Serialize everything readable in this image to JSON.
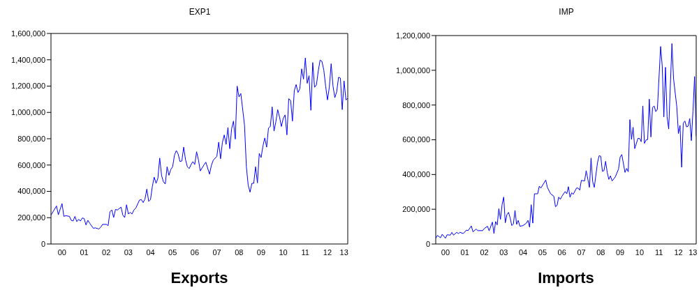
{
  "chart_data": [
    {
      "type": "line",
      "title": "EXP1",
      "xlabel": "Exports",
      "color": "#0000ff",
      "x": [
        "2000-01",
        "2000-04",
        "2000-05",
        "2000-07",
        "2000-08",
        "2000-09",
        "2000-11",
        "2000-12",
        "2001-01",
        "2001-02",
        "2001-03",
        "2001-04",
        "2001-05",
        "2001-06",
        "2001-07",
        "2001-08",
        "2001-09",
        "2001-10",
        "2001-12",
        "2002-01",
        "2002-03",
        "2002-04",
        "2002-05",
        "2002-07",
        "2002-08",
        "2002-09",
        "2002-10",
        "2002-11",
        "2002-12",
        "2003-01",
        "2003-03",
        "2003-04",
        "2003-05",
        "2003-06",
        "2003-07",
        "2003-08",
        "2003-09",
        "2003-10",
        "2003-11",
        "2004-01",
        "2004-02",
        "2004-03",
        "2004-04",
        "2004-05",
        "2004-06",
        "2004-07",
        "2004-08",
        "2004-09",
        "2004-10",
        "2004-11",
        "2004-12",
        "2005-01",
        "2005-02",
        "2005-03",
        "2005-04",
        "2005-05",
        "2005-06",
        "2005-07",
        "2005-08",
        "2005-09",
        "2005-10",
        "2005-11",
        "2005-12",
        "2006-01",
        "2006-02",
        "2006-03",
        "2006-04",
        "2006-05",
        "2006-06",
        "2006-07",
        "2006-08",
        "2006-09",
        "2006-10",
        "2006-12",
        "2007-01",
        "2007-03",
        "2007-04",
        "2007-05",
        "2007-07",
        "2007-08",
        "2007-09",
        "2007-10",
        "2007-11",
        "2007-12",
        "2008-01",
        "2008-02",
        "2008-03",
        "2008-04",
        "2008-05",
        "2008-06",
        "2008-07",
        "2008-08",
        "2008-10",
        "2008-11",
        "2008-12",
        "2009-01",
        "2009-02",
        "2009-03",
        "2009-04",
        "2009-05",
        "2009-06",
        "2009-07",
        "2009-08",
        "2009-09",
        "2009-10",
        "2009-11",
        "2009-12",
        "2010-01",
        "2010-02",
        "2010-03",
        "2010-04",
        "2010-05",
        "2010-06",
        "2010-07",
        "2010-08",
        "2010-09",
        "2010-10",
        "2010-11",
        "2010-12",
        "2011-01",
        "2011-02",
        "2011-03",
        "2011-04",
        "2011-05",
        "2011-06",
        "2011-07",
        "2011-08",
        "2011-09",
        "2011-10",
        "2011-11",
        "2011-12",
        "2012-01",
        "2012-02",
        "2012-03",
        "2012-04",
        "2012-05",
        "2012-06",
        "2012-07",
        "2012-08",
        "2012-09",
        "2012-10",
        "2012-11",
        "2012-12",
        "2013-01",
        "2013-02",
        "2013-03",
        "2013-04",
        "2013-05",
        "2013-06"
      ],
      "values": [
        219000,
        289000,
        222000,
        307000,
        210000,
        215000,
        210000,
        180000,
        175000,
        210000,
        170000,
        187000,
        175000,
        198000,
        193000,
        145000,
        180000,
        158000,
        119000,
        123000,
        114000,
        128000,
        149000,
        149000,
        140000,
        245000,
        259000,
        201000,
        263000,
        258000,
        280000,
        219000,
        201000,
        298000,
        228000,
        240000,
        228000,
        259000,
        272000,
        333000,
        338000,
        315000,
        342000,
        417000,
        324000,
        338000,
        438000,
        508000,
        461000,
        499000,
        653000,
        520000,
        473000,
        456000,
        587000,
        522000,
        566000,
        587000,
        675000,
        710000,
        683000,
        626000,
        631000,
        736000,
        640000,
        587000,
        573000,
        604000,
        626000,
        604000,
        701000,
        640000,
        555000,
        601000,
        622000,
        531000,
        596000,
        636000,
        666000,
        774000,
        648000,
        771000,
        829000,
        757000,
        885000,
        724000,
        876000,
        934000,
        797000,
        1200000,
        1118000,
        1144000,
        902000,
        587000,
        447000,
        394000,
        461000,
        461000,
        587000,
        464000,
        688000,
        657000,
        745000,
        806000,
        736000,
        881000,
        893000,
        1042000,
        858000,
        929000,
        1021000,
        964000,
        893000,
        955000,
        981000,
        829000,
        1104000,
        1091000,
        934000,
        1165000,
        1212000,
        1151000,
        1179000,
        1331000,
        1253000,
        1414000,
        1221000,
        1279000,
        1016000,
        1379000,
        1191000,
        1209000,
        1314000,
        1398000,
        1388000,
        1323000,
        1200000,
        1095000,
        1191000,
        1370000,
        1200000,
        1112000,
        1156000,
        1267000,
        1261000,
        1021000,
        1239000,
        1095000,
        1107000
      ],
      "xlim": [
        "2000-01",
        "2013-06"
      ],
      "xticks": [
        {
          "value": "2000-07",
          "label": "00"
        },
        {
          "value": "2001-07",
          "label": "01"
        },
        {
          "value": "2002-07",
          "label": "02"
        },
        {
          "value": "2003-07",
          "label": "03"
        },
        {
          "value": "2004-07",
          "label": "04"
        },
        {
          "value": "2005-07",
          "label": "05"
        },
        {
          "value": "2006-07",
          "label": "06"
        },
        {
          "value": "2007-07",
          "label": "07"
        },
        {
          "value": "2008-07",
          "label": "08"
        },
        {
          "value": "2009-07",
          "label": "09"
        },
        {
          "value": "2010-07",
          "label": "10"
        },
        {
          "value": "2011-07",
          "label": "11"
        },
        {
          "value": "2012-07",
          "label": "12"
        },
        {
          "value": "2013-04",
          "label": "13"
        }
      ],
      "ylim": [
        0,
        1600000
      ],
      "yticks": [
        0,
        {
          "value": 200000,
          "label": "200,000"
        },
        {
          "value": 400000,
          "label": "400,000"
        },
        {
          "value": 600000,
          "label": "600,000"
        },
        {
          "value": 800000,
          "label": "800,000"
        },
        {
          "value": 1000000,
          "label": "1,000,000"
        },
        {
          "value": 1200000,
          "label": "1,200,000"
        },
        {
          "value": 1400000,
          "label": "1,400,000"
        },
        {
          "value": 1600000,
          "label": "1,600,000"
        }
      ]
    },
    {
      "type": "line",
      "title": "IMP",
      "xlabel": "Imports",
      "color": "#0000ff",
      "x": [
        "2000-01",
        "2000-02",
        "2000-04",
        "2000-05",
        "2000-07",
        "2000-08",
        "2000-10",
        "2000-11",
        "2000-12",
        "2001-02",
        "2001-03",
        "2001-04",
        "2001-06",
        "2001-08",
        "2001-09",
        "2001-11",
        "2001-12",
        "2002-02",
        "2002-03",
        "2002-06",
        "2002-07",
        "2002-09",
        "2002-10",
        "2002-12",
        "2003-01",
        "2003-02",
        "2003-03",
        "2003-04",
        "2003-05",
        "2003-06",
        "2003-07",
        "2003-08",
        "2003-09",
        "2003-10",
        "2003-11",
        "2003-12",
        "2004-01",
        "2004-02",
        "2004-03",
        "2004-04",
        "2004-05",
        "2004-07",
        "2004-09",
        "2004-10",
        "2004-11",
        "2004-12",
        "2005-01",
        "2005-02",
        "2005-04",
        "2005-05",
        "2005-06",
        "2005-09",
        "2005-10",
        "2005-12",
        "2006-02",
        "2006-03",
        "2006-04",
        "2006-05",
        "2006-06",
        "2006-07",
        "2006-09",
        "2006-10",
        "2006-11",
        "2006-12",
        "2007-01",
        "2007-02",
        "2007-04",
        "2007-05",
        "2007-06",
        "2007-07",
        "2007-09",
        "2007-10",
        "2007-12",
        "2008-01",
        "2008-02",
        "2008-03",
        "2008-05",
        "2008-06",
        "2008-07",
        "2008-08",
        "2008-09",
        "2008-10",
        "2008-11",
        "2008-12",
        "2009-01",
        "2009-02",
        "2009-04",
        "2009-06",
        "2009-07",
        "2009-08",
        "2009-10",
        "2009-11",
        "2009-12",
        "2010-01",
        "2010-02",
        "2010-03",
        "2010-04",
        "2010-06",
        "2010-07",
        "2010-08",
        "2010-09",
        "2010-10",
        "2010-11",
        "2010-12",
        "2011-01",
        "2011-02",
        "2011-03",
        "2011-04",
        "2011-05",
        "2011-06",
        "2011-08",
        "2011-09",
        "2011-10",
        "2011-11",
        "2011-12",
        "2012-01",
        "2012-03",
        "2012-04",
        "2012-06",
        "2012-07",
        "2012-08",
        "2012-09",
        "2012-10",
        "2012-11",
        "2012-12",
        "2013-01",
        "2013-02",
        "2013-03",
        "2013-04",
        "2013-05",
        "2013-06"
      ],
      "values": [
        33000,
        49000,
        36000,
        56000,
        33000,
        53000,
        51000,
        67000,
        51000,
        67000,
        60000,
        67000,
        60000,
        80000,
        77000,
        104000,
        70000,
        86000,
        77000,
        77000,
        89000,
        102000,
        76000,
        126000,
        60000,
        129000,
        110000,
        203000,
        142000,
        226000,
        270000,
        122000,
        169000,
        182000,
        150000,
        106000,
        116000,
        193000,
        113000,
        136000,
        102000,
        106000,
        120000,
        136000,
        97000,
        226000,
        120000,
        289000,
        289000,
        333000,
        322000,
        368000,
        326000,
        289000,
        275000,
        215000,
        222000,
        270000,
        257000,
        275000,
        302000,
        289000,
        330000,
        269000,
        295000,
        286000,
        322000,
        322000,
        310000,
        366000,
        363000,
        422000,
        326000,
        495000,
        359000,
        326000,
        469000,
        508000,
        505000,
        419000,
        422000,
        476000,
        412000,
        372000,
        392000,
        363000,
        386000,
        432000,
        501000,
        515000,
        412000,
        435000,
        416000,
        716000,
        602000,
        672000,
        549000,
        608000,
        608000,
        589000,
        795000,
        579000,
        599000,
        601000,
        834000,
        616000,
        785000,
        795000,
        762000,
        775000,
        1137000,
        1024000,
        732000,
        1017000,
        732000,
        662000,
        1154000,
        951000,
        791000,
        636000,
        682000,
        442000,
        696000,
        708000,
        674000,
        678000,
        722000,
        595000,
        765000,
        964000,
        621000
      ],
      "xlim": [
        "2000-01",
        "2013-06"
      ],
      "xticks": [
        {
          "value": "2000-07",
          "label": "00"
        },
        {
          "value": "2001-07",
          "label": "01"
        },
        {
          "value": "2002-07",
          "label": "02"
        },
        {
          "value": "2003-07",
          "label": "03"
        },
        {
          "value": "2004-07",
          "label": "04"
        },
        {
          "value": "2005-07",
          "label": "05"
        },
        {
          "value": "2006-07",
          "label": "06"
        },
        {
          "value": "2007-07",
          "label": "07"
        },
        {
          "value": "2008-07",
          "label": "08"
        },
        {
          "value": "2009-07",
          "label": "09"
        },
        {
          "value": "2010-07",
          "label": "10"
        },
        {
          "value": "2011-07",
          "label": "11"
        },
        {
          "value": "2012-07",
          "label": "12"
        },
        {
          "value": "2013-04",
          "label": "13"
        }
      ],
      "ylim": [
        0,
        1200000
      ],
      "yticks": [
        0,
        {
          "value": 200000,
          "label": "200,000"
        },
        {
          "value": 400000,
          "label": "400,000"
        },
        {
          "value": 600000,
          "label": "600,000"
        },
        {
          "value": 800000,
          "label": "800,000"
        },
        {
          "value": 1000000,
          "label": "1,000,000"
        },
        {
          "value": 1200000,
          "label": "1,200,000"
        }
      ]
    }
  ]
}
